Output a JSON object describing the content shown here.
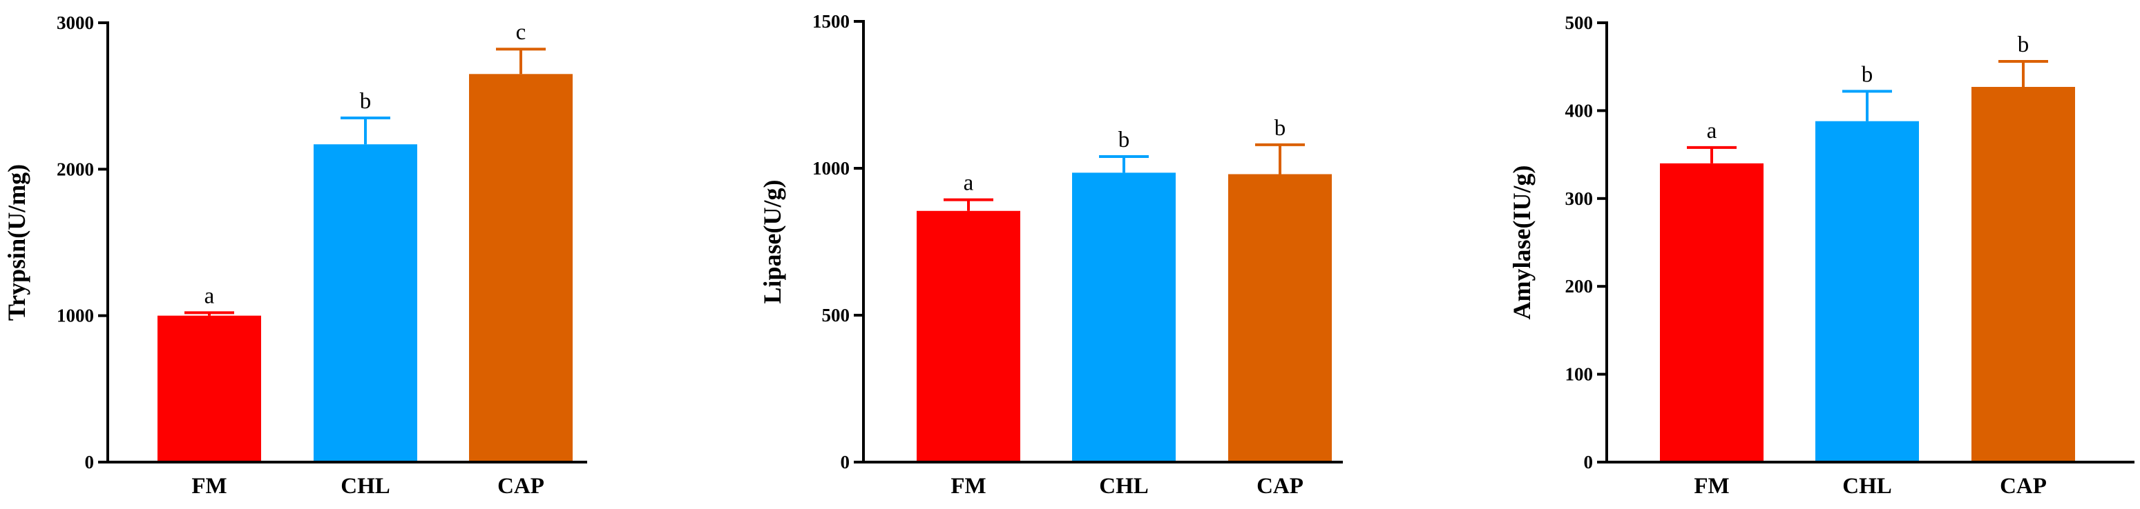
{
  "chart_data": [
    {
      "type": "bar",
      "categories": [
        "FM",
        "CHL",
        "CAP"
      ],
      "values": [
        1000,
        2170,
        2650
      ],
      "errors": [
        20,
        180,
        170
      ],
      "significance": [
        "a",
        "b",
        "c"
      ],
      "colors": [
        "#fe0000",
        "#00a2fe",
        "#db6000"
      ],
      "ylabel": "Trypsin(U/mg)",
      "xlabel": "",
      "ylim": [
        0,
        3000
      ],
      "yticks": [
        0,
        1000,
        2000,
        3000
      ],
      "ytick_labels": [
        "0",
        "1000",
        "2000",
        "3000"
      ]
    },
    {
      "type": "bar",
      "categories": [
        "FM",
        "CHL",
        "CAP"
      ],
      "values": [
        855,
        985,
        980
      ],
      "errors": [
        38,
        55,
        100
      ],
      "significance": [
        "a",
        "b",
        "b"
      ],
      "colors": [
        "#fe0000",
        "#00a2fe",
        "#db6000"
      ],
      "ylabel": "Lipase(U/g)",
      "xlabel": "",
      "ylim": [
        0,
        1500
      ],
      "yticks": [
        0,
        500,
        1000,
        1500
      ],
      "ytick_labels": [
        "0",
        "500",
        "1000",
        "1500"
      ]
    },
    {
      "type": "bar",
      "categories": [
        "FM",
        "CHL",
        "CAP"
      ],
      "values": [
        340,
        388,
        427
      ],
      "errors": [
        18,
        34,
        29
      ],
      "significance": [
        "a",
        "b",
        "b"
      ],
      "colors": [
        "#fe0000",
        "#00a2fe",
        "#db6000"
      ],
      "ylabel": "Amylase(IU/g)",
      "xlabel": "",
      "ylim": [
        0,
        500
      ],
      "yticks": [
        0,
        100,
        200,
        300,
        400,
        500
      ],
      "ytick_labels": [
        "0",
        "100",
        "200",
        "300",
        "400",
        "500"
      ]
    }
  ]
}
